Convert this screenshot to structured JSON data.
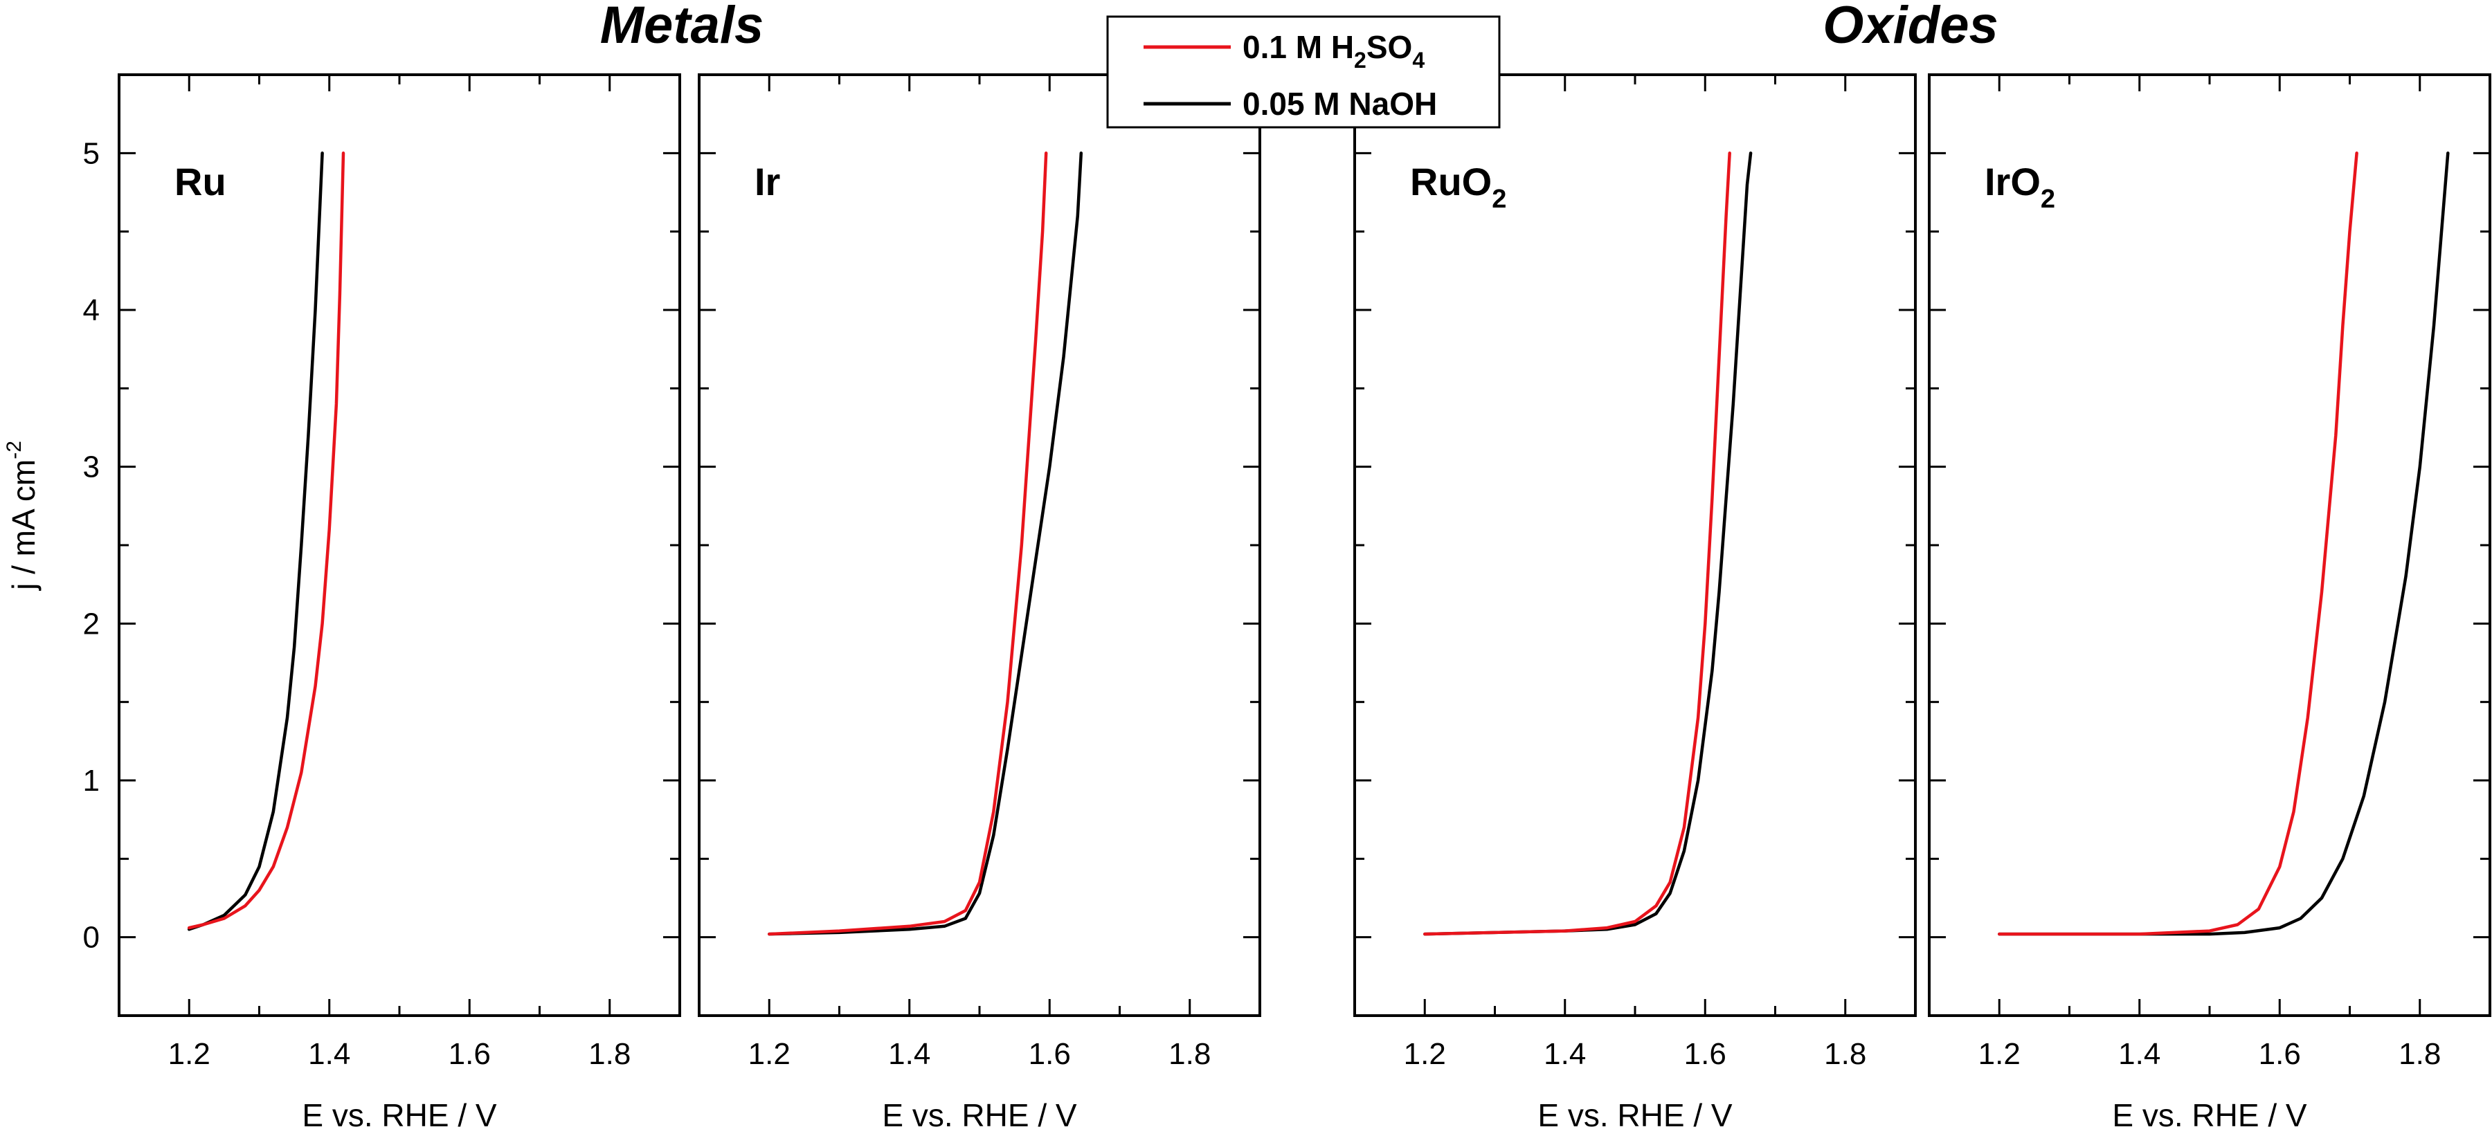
{
  "chart_data": [
    {
      "type": "line",
      "panel_label": "Ru",
      "group_title": "Metals",
      "xlabel": "E vs. RHE / V",
      "ylabel": "j / mA cm",
      "ylabel_sup": "-2",
      "xlim": [
        1.1,
        1.9
      ],
      "ylim": [
        -0.5,
        5.5
      ],
      "x_ticks": [
        1.2,
        1.4,
        1.6,
        1.8
      ],
      "y_ticks": [
        0,
        1,
        2,
        3,
        4,
        5
      ],
      "series": [
        {
          "name": "0.1 M H2SO4",
          "color": "#e8141c",
          "x": [
            1.2,
            1.22,
            1.25,
            1.28,
            1.3,
            1.32,
            1.34,
            1.36,
            1.38,
            1.39,
            1.4,
            1.41,
            1.415,
            1.42
          ],
          "y": [
            0.06,
            0.08,
            0.12,
            0.2,
            0.3,
            0.45,
            0.7,
            1.05,
            1.6,
            2.0,
            2.6,
            3.4,
            4.1,
            5.0
          ]
        },
        {
          "name": "0.05 M NaOH",
          "color": "#000000",
          "x": [
            1.2,
            1.22,
            1.25,
            1.28,
            1.3,
            1.32,
            1.34,
            1.35,
            1.36,
            1.37,
            1.38,
            1.39
          ],
          "y": [
            0.05,
            0.08,
            0.14,
            0.27,
            0.45,
            0.8,
            1.4,
            1.85,
            2.5,
            3.2,
            4.0,
            5.0
          ]
        }
      ]
    },
    {
      "type": "line",
      "panel_label": "Ir",
      "xlabel": "E vs. RHE / V",
      "xlim": [
        1.1,
        1.9
      ],
      "ylim": [
        -0.5,
        5.5
      ],
      "x_ticks": [
        1.2,
        1.4,
        1.6,
        1.8
      ],
      "series": [
        {
          "name": "0.1 M H2SO4",
          "color": "#e8141c",
          "x": [
            1.2,
            1.3,
            1.4,
            1.45,
            1.48,
            1.5,
            1.52,
            1.54,
            1.56,
            1.58,
            1.59,
            1.595
          ],
          "y": [
            0.02,
            0.04,
            0.07,
            0.1,
            0.17,
            0.35,
            0.8,
            1.5,
            2.5,
            3.8,
            4.5,
            5.0
          ]
        },
        {
          "name": "0.05 M NaOH",
          "color": "#000000",
          "x": [
            1.2,
            1.3,
            1.4,
            1.45,
            1.48,
            1.5,
            1.52,
            1.54,
            1.56,
            1.58,
            1.6,
            1.62,
            1.64,
            1.645
          ],
          "y": [
            0.02,
            0.03,
            0.05,
            0.07,
            0.12,
            0.28,
            0.65,
            1.2,
            1.8,
            2.4,
            3.0,
            3.7,
            4.6,
            5.0
          ]
        }
      ]
    },
    {
      "type": "line",
      "panel_label": "RuO",
      "panel_label_sub": "2",
      "group_title": "Oxides",
      "xlabel": "E vs. RHE / V",
      "xlim": [
        1.1,
        1.9
      ],
      "ylim": [
        -0.5,
        5.5
      ],
      "x_ticks": [
        1.2,
        1.4,
        1.6,
        1.8
      ],
      "series": [
        {
          "name": "0.1 M H2SO4",
          "color": "#e8141c",
          "x": [
            1.2,
            1.3,
            1.4,
            1.46,
            1.5,
            1.53,
            1.55,
            1.57,
            1.59,
            1.6,
            1.61,
            1.62,
            1.63,
            1.635
          ],
          "y": [
            0.02,
            0.03,
            0.04,
            0.06,
            0.1,
            0.2,
            0.35,
            0.7,
            1.4,
            2.0,
            2.8,
            3.7,
            4.6,
            5.0
          ]
        },
        {
          "name": "0.05 M NaOH",
          "color": "#000000",
          "x": [
            1.2,
            1.3,
            1.4,
            1.46,
            1.5,
            1.53,
            1.55,
            1.57,
            1.59,
            1.61,
            1.62,
            1.63,
            1.64,
            1.65,
            1.66,
            1.665
          ],
          "y": [
            0.02,
            0.03,
            0.04,
            0.05,
            0.08,
            0.15,
            0.28,
            0.55,
            1.0,
            1.7,
            2.2,
            2.8,
            3.4,
            4.1,
            4.8,
            5.0
          ]
        }
      ]
    },
    {
      "type": "line",
      "panel_label": "IrO",
      "panel_label_sub": "2",
      "xlabel": "E vs. RHE / V",
      "xlim": [
        1.1,
        1.9
      ],
      "ylim": [
        -0.5,
        5.5
      ],
      "x_ticks": [
        1.2,
        1.4,
        1.6,
        1.8
      ],
      "series": [
        {
          "name": "0.1 M H2SO4",
          "color": "#e8141c",
          "x": [
            1.2,
            1.3,
            1.4,
            1.5,
            1.54,
            1.57,
            1.6,
            1.62,
            1.64,
            1.66,
            1.68,
            1.69,
            1.7,
            1.71
          ],
          "y": [
            0.02,
            0.02,
            0.02,
            0.04,
            0.08,
            0.18,
            0.45,
            0.8,
            1.4,
            2.2,
            3.2,
            3.9,
            4.5,
            5.0
          ]
        },
        {
          "name": "0.05 M NaOH",
          "color": "#000000",
          "x": [
            1.2,
            1.3,
            1.4,
            1.5,
            1.55,
            1.6,
            1.63,
            1.66,
            1.69,
            1.72,
            1.75,
            1.78,
            1.8,
            1.82,
            1.84
          ],
          "y": [
            0.02,
            0.02,
            0.02,
            0.02,
            0.03,
            0.06,
            0.12,
            0.25,
            0.5,
            0.9,
            1.5,
            2.3,
            3.0,
            3.9,
            5.0
          ]
        }
      ]
    }
  ],
  "legend": {
    "placement": "top-center",
    "entries": [
      {
        "label": "0.1 M H",
        "sub1": "2",
        "mid": "SO",
        "sub2": "4",
        "color": "#e8141c"
      },
      {
        "label": "0.05 M NaOH",
        "color": "#000000"
      }
    ]
  }
}
